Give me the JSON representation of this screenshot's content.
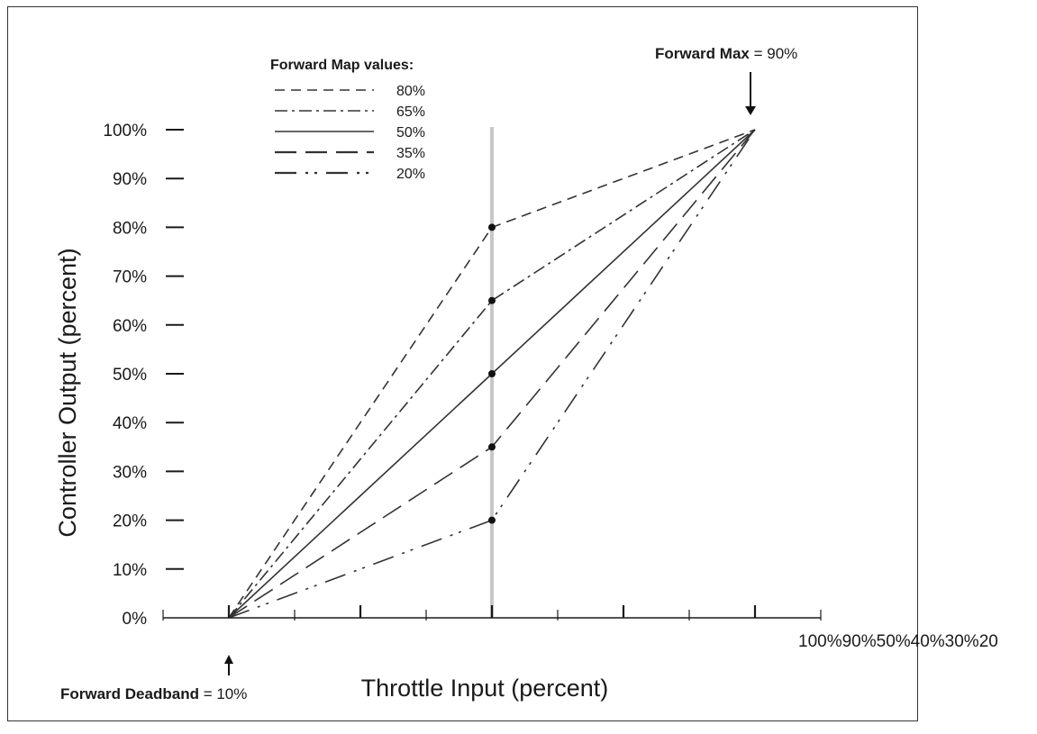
{
  "chart_data": {
    "type": "line",
    "xlabel": "Throttle Input (percent)",
    "ylabel": "Controller Output (percent)",
    "xlim": [
      0,
      100
    ],
    "ylim": [
      0,
      100
    ],
    "y_tick_labels": [
      "0%",
      "10%",
      "20%",
      "30%",
      "40%",
      "50%",
      "60%",
      "70%",
      "80%",
      "90%",
      "100%"
    ],
    "x_tick_labels_text": "100%90%50%40%30%20",
    "legend": {
      "title": "Forward Map values:",
      "placement": "top-left",
      "entries": [
        "80%",
        "65%",
        "50%",
        "35%",
        "20%"
      ]
    },
    "series": [
      {
        "name": "80%",
        "x": [
          10,
          50,
          90
        ],
        "y": [
          0,
          80,
          100
        ],
        "dash": "dashed"
      },
      {
        "name": "65%",
        "x": [
          10,
          50,
          90
        ],
        "y": [
          0,
          65,
          100
        ],
        "dash": "dash-dot"
      },
      {
        "name": "50%",
        "x": [
          10,
          50,
          90
        ],
        "y": [
          0,
          50,
          100
        ],
        "dash": "solid"
      },
      {
        "name": "35%",
        "x": [
          10,
          50,
          90
        ],
        "y": [
          0,
          35,
          100
        ],
        "dash": "long-dash"
      },
      {
        "name": "20%",
        "x": [
          10,
          50,
          90
        ],
        "y": [
          0,
          20,
          100
        ],
        "dash": "dash-dot-dot"
      }
    ],
    "vertical_marker_x": 50,
    "annotations": {
      "forward_max": {
        "label": "Forward Max",
        "value": " = 90%",
        "x": 90
      },
      "forward_deadband": {
        "label": "Forward Deadband",
        "value": " = 10%",
        "x": 10
      }
    },
    "colors": {
      "line": "#333333",
      "marker_line": "#c8c8c8",
      "axis": "#1a1a1a"
    }
  }
}
